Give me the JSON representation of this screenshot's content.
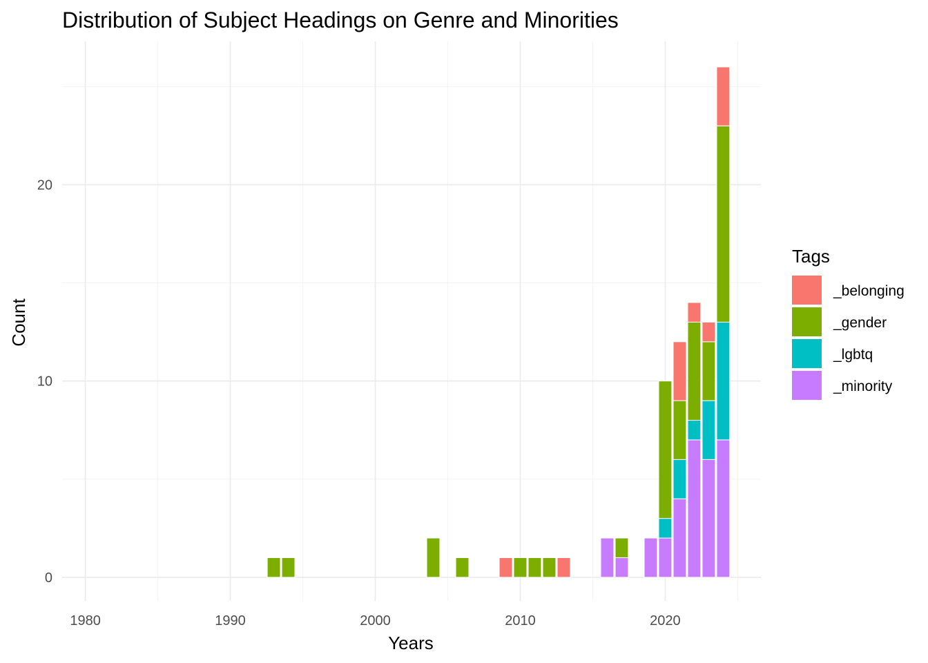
{
  "chart_data": {
    "type": "bar",
    "stacked": true,
    "title": "Distribution of Subject Headings on Genre and Minorities",
    "xlabel": "Years",
    "ylabel": "Count",
    "xlim": [
      1978.4,
      1986.6
    ],
    "xlim_note": "",
    "x_range": [
      1978.4,
      2026.6
    ],
    "y_range": [
      -1.2,
      27.3
    ],
    "x_ticks": [
      1980,
      1990,
      2000,
      2010,
      2020
    ],
    "y_ticks": [
      0,
      10,
      20
    ],
    "grid": true,
    "legend": {
      "title": "Tags",
      "position": "right",
      "entries": [
        "_belonging",
        "_gender",
        "_lgbtq",
        "_minority"
      ]
    },
    "colors": {
      "_belonging": "#F8766D",
      "_gender": "#7CAE00",
      "_lgbtq": "#00BFC4",
      "_minority": "#C77CFF"
    },
    "stack_order_bottom_to_top": [
      "_minority",
      "_lgbtq",
      "_gender",
      "_belonging"
    ],
    "x": [
      1993,
      1994,
      2004,
      2006,
      2009,
      2010,
      2011,
      2012,
      2013,
      2016,
      2017,
      2019,
      2020,
      2021,
      2022,
      2023,
      2024
    ],
    "series": [
      {
        "name": "_belonging",
        "values": [
          0,
          0,
          0,
          0,
          1,
          0,
          0,
          0,
          1,
          0,
          0,
          0,
          0,
          3,
          1,
          1,
          3
        ]
      },
      {
        "name": "_gender",
        "values": [
          1,
          1,
          2,
          1,
          0,
          1,
          1,
          1,
          0,
          0,
          1,
          0,
          7,
          3,
          5,
          3,
          10
        ]
      },
      {
        "name": "_lgbtq",
        "values": [
          0,
          0,
          0,
          0,
          0,
          0,
          0,
          0,
          0,
          0,
          0,
          0,
          1,
          2,
          1,
          3,
          6
        ]
      },
      {
        "name": "_minority",
        "values": [
          0,
          0,
          0,
          0,
          0,
          0,
          0,
          0,
          0,
          2,
          1,
          2,
          2,
          4,
          7,
          6,
          7
        ]
      }
    ]
  }
}
